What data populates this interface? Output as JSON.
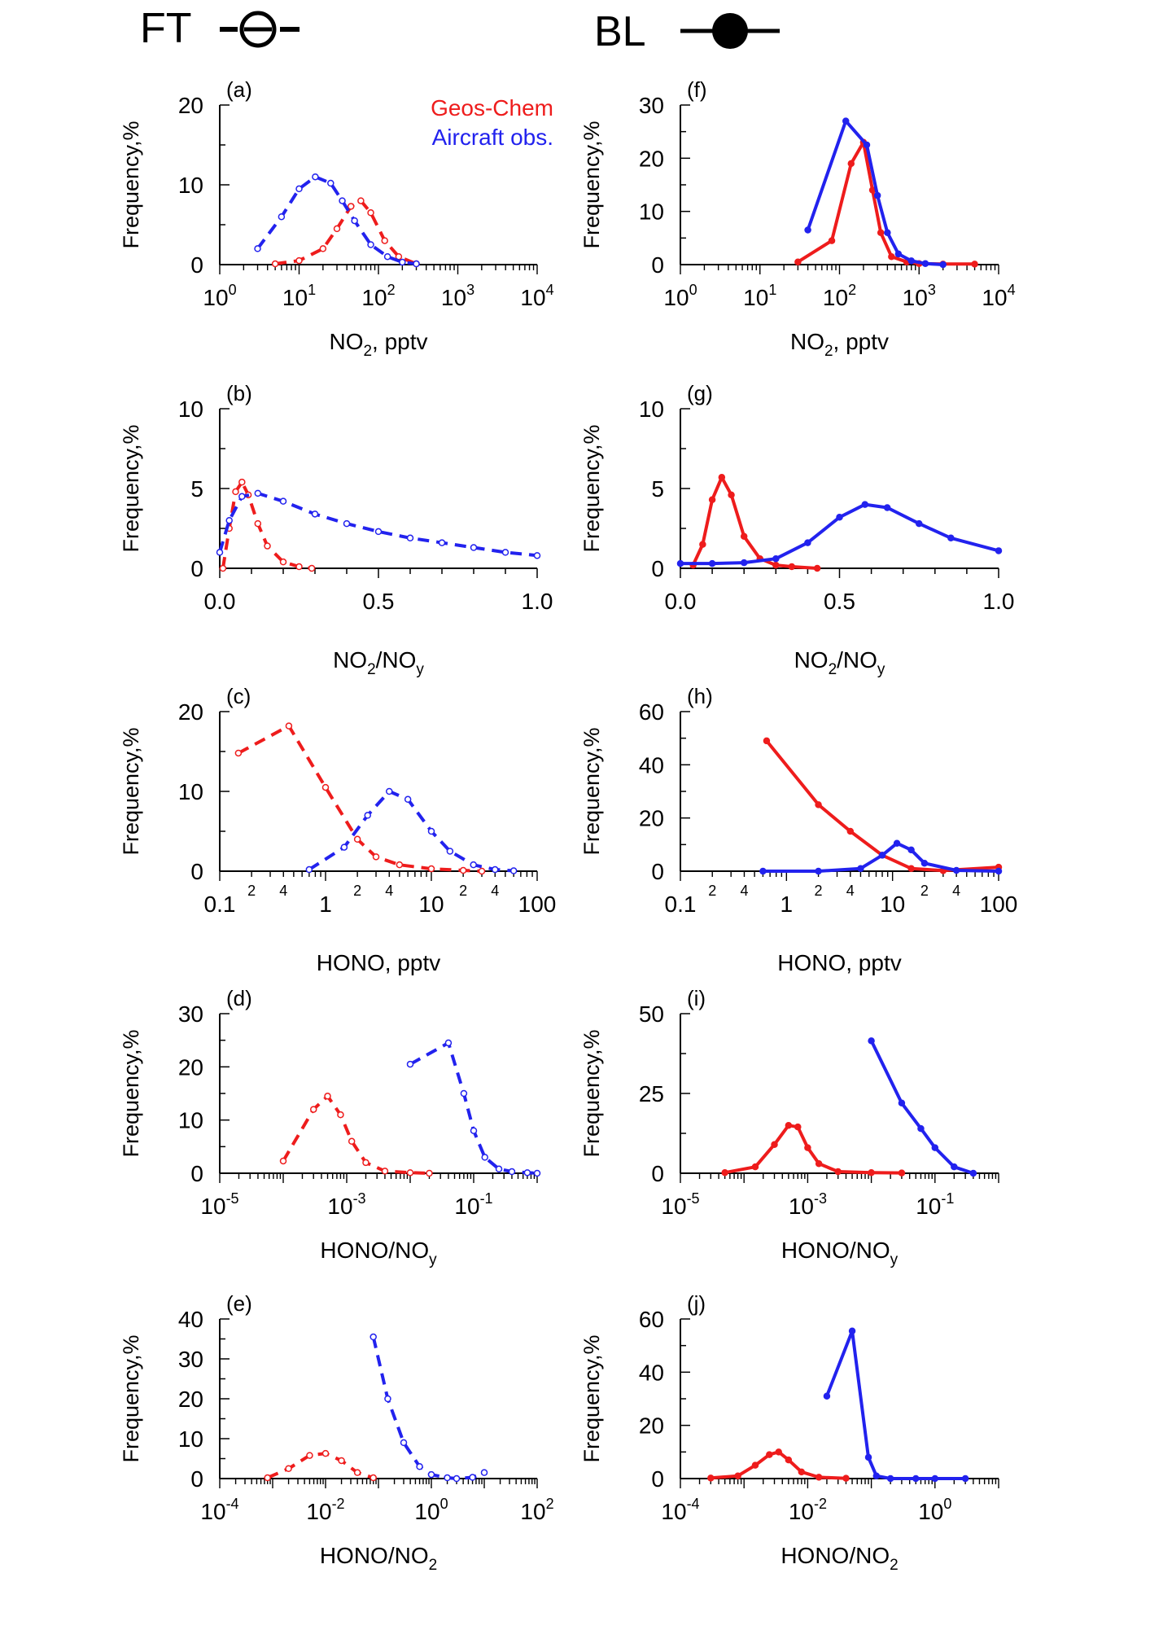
{
  "header": {
    "ft_label": "FT",
    "bl_label": "BL"
  },
  "legend": {
    "model": "Geos-Chem",
    "obs": "Aircraft obs.",
    "model_color": "#ee1c1c",
    "obs_color": "#2222ee",
    "placement": "top-right of panel (a)"
  },
  "ylabel": "Frequency,%",
  "chart_data": [
    {
      "panel": "(a)",
      "type": "line",
      "xlabel": "NO",
      "xlabel_sub": "2",
      "xlabel_suffix": ", pptv",
      "xscale": "log",
      "xlim": [
        1,
        10000
      ],
      "ylim": [
        0,
        20
      ],
      "yticks": [
        0,
        10,
        20
      ],
      "xticks": [
        1,
        10,
        100,
        1000,
        10000
      ],
      "xtick_labels": [
        {
          "b": "10",
          "e": "0"
        },
        {
          "b": "10",
          "e": "1"
        },
        {
          "b": "10",
          "e": "2"
        },
        {
          "b": "10",
          "e": "3"
        },
        {
          "b": "10",
          "e": "4"
        }
      ],
      "line_style": "dashed",
      "series": [
        {
          "name": "Geos-Chem",
          "color": "#ee1c1c",
          "x": [
            5,
            10,
            20,
            30,
            45,
            60,
            80,
            120,
            180,
            300
          ],
          "y": [
            0.1,
            0.5,
            2,
            4.5,
            7.3,
            8,
            6.5,
            3,
            1,
            0.1
          ]
        },
        {
          "name": "Aircraft obs.",
          "color": "#2222ee",
          "x": [
            3,
            6,
            10,
            16,
            25,
            35,
            50,
            80,
            130,
            200,
            300
          ],
          "y": [
            2,
            6,
            9.5,
            11,
            10.2,
            8,
            5.5,
            2.5,
            1,
            0.3,
            0.1
          ]
        }
      ]
    },
    {
      "panel": "(b)",
      "type": "line",
      "xlabel": "NO",
      "xlabel_sub": "2",
      "xlabel_suffix": "/NO",
      "xlabel_sub2": "y",
      "xscale": "linear",
      "xlim": [
        0,
        1
      ],
      "ylim": [
        0,
        10
      ],
      "yticks": [
        0,
        5,
        10
      ],
      "xticks": [
        0,
        0.5,
        1
      ],
      "xtick_labels": [
        "0.0",
        "0.5",
        "1.0"
      ],
      "line_style": "dashed",
      "series": [
        {
          "name": "Geos-Chem",
          "color": "#ee1c1c",
          "x": [
            0.01,
            0.03,
            0.05,
            0.07,
            0.09,
            0.12,
            0.15,
            0.2,
            0.25,
            0.29
          ],
          "y": [
            0,
            2.5,
            4.8,
            5.4,
            4.6,
            2.8,
            1.4,
            0.4,
            0.1,
            0
          ]
        },
        {
          "name": "Aircraft obs.",
          "color": "#2222ee",
          "x": [
            0,
            0.03,
            0.07,
            0.12,
            0.2,
            0.3,
            0.4,
            0.5,
            0.6,
            0.7,
            0.8,
            0.9,
            1.0
          ],
          "y": [
            1,
            3,
            4.5,
            4.7,
            4.2,
            3.4,
            2.8,
            2.3,
            1.9,
            1.6,
            1.3,
            1,
            0.8
          ]
        }
      ]
    },
    {
      "panel": "(c)",
      "type": "line",
      "xlabel": "HONO, pptv",
      "xscale": "log",
      "xlim": [
        0.1,
        100
      ],
      "ylim": [
        0,
        20
      ],
      "yticks": [
        0,
        10,
        20
      ],
      "xticks": [
        0.1,
        1,
        10,
        100
      ],
      "xtick_labels": [
        "0.1",
        "1",
        "10",
        "100"
      ],
      "minor_labels": [
        {
          "v": 0.2,
          "t": "2"
        },
        {
          "v": 0.4,
          "t": "4"
        },
        {
          "v": 2,
          "t": "2"
        },
        {
          "v": 4,
          "t": "4"
        },
        {
          "v": 20,
          "t": "2"
        },
        {
          "v": 40,
          "t": "4"
        }
      ],
      "line_style": "dashed",
      "series": [
        {
          "name": "Geos-Chem",
          "color": "#ee1c1c",
          "x": [
            0.15,
            0.45,
            1,
            2,
            3,
            5,
            10,
            20,
            30
          ],
          "y": [
            14.8,
            18.2,
            10.5,
            4,
            1.8,
            0.8,
            0.3,
            0.1,
            0
          ]
        },
        {
          "name": "Aircraft obs.",
          "color": "#2222ee",
          "x": [
            0.7,
            1.5,
            2.5,
            4,
            6,
            10,
            15,
            25,
            40,
            60
          ],
          "y": [
            0.2,
            3,
            7,
            10,
            9,
            5,
            2.5,
            0.8,
            0.2,
            0.05
          ]
        }
      ]
    },
    {
      "panel": "(d)",
      "type": "line",
      "xlabel": "HONO/NO",
      "xlabel_sub": "y",
      "xscale": "log",
      "xlim": [
        1e-05,
        1
      ],
      "ylim": [
        0,
        30
      ],
      "yticks": [
        0,
        10,
        20,
        30
      ],
      "xticks": [
        1e-05,
        0.001,
        0.1
      ],
      "xtick_labels": [
        {
          "b": "10",
          "e": "-5"
        },
        {
          "b": "10",
          "e": "-3"
        },
        {
          "b": "10",
          "e": "-1"
        }
      ],
      "line_style": "dashed",
      "series": [
        {
          "name": "Geos-Chem",
          "color": "#ee1c1c",
          "x": [
            0.0001,
            0.0003,
            0.0005,
            0.0008,
            0.0012,
            0.002,
            0.004,
            0.01,
            0.02
          ],
          "y": [
            2.3,
            12,
            14.5,
            11,
            6,
            2,
            0.4,
            0.1,
            0
          ]
        },
        {
          "name": "Aircraft obs.",
          "color": "#2222ee",
          "x": [
            0.01,
            0.04,
            0.07,
            0.1,
            0.15,
            0.25,
            0.4,
            0.7,
            1
          ],
          "y": [
            20.5,
            24.5,
            15,
            8,
            3,
            0.8,
            0.3,
            0.1,
            0
          ]
        }
      ]
    },
    {
      "panel": "(e)",
      "type": "line",
      "xlabel": "HONO/NO",
      "xlabel_sub": "2",
      "xscale": "log",
      "xlim": [
        0.0001,
        100
      ],
      "ylim": [
        0,
        40
      ],
      "yticks": [
        0,
        10,
        20,
        30,
        40
      ],
      "xticks": [
        0.0001,
        0.01,
        1,
        100
      ],
      "xtick_labels": [
        {
          "b": "10",
          "e": "-4"
        },
        {
          "b": "10",
          "e": "-2"
        },
        {
          "b": "10",
          "e": "0"
        },
        {
          "b": "10",
          "e": "2"
        }
      ],
      "line_style": "dashed",
      "series": [
        {
          "name": "Geos-Chem",
          "color": "#ee1c1c",
          "x": [
            0.0008,
            0.002,
            0.005,
            0.01,
            0.02,
            0.04,
            0.08
          ],
          "y": [
            0.2,
            2.5,
            5.8,
            6.3,
            4.5,
            1.5,
            0.2
          ]
        },
        {
          "name": "Aircraft obs.",
          "color": "#2222ee",
          "x": [
            0.08,
            0.15,
            0.3,
            0.6,
            1,
            2,
            3,
            6,
            10
          ],
          "y": [
            35.5,
            20,
            9,
            3,
            1,
            0.2,
            0,
            0.3,
            1.5
          ]
        }
      ]
    },
    {
      "panel": "(f)",
      "type": "line",
      "xlabel": "NO",
      "xlabel_sub": "2",
      "xlabel_suffix": ", pptv",
      "xscale": "log",
      "xlim": [
        1,
        10000
      ],
      "ylim": [
        0,
        30
      ],
      "yticks": [
        0,
        10,
        20,
        30
      ],
      "xticks": [
        1,
        10,
        100,
        1000,
        10000
      ],
      "xtick_labels": [
        {
          "b": "10",
          "e": "0"
        },
        {
          "b": "10",
          "e": "1"
        },
        {
          "b": "10",
          "e": "2"
        },
        {
          "b": "10",
          "e": "3"
        },
        {
          "b": "10",
          "e": "4"
        }
      ],
      "line_style": "solid",
      "series": [
        {
          "name": "Geos-Chem",
          "color": "#ee1c1c",
          "x": [
            30,
            80,
            140,
            200,
            260,
            330,
            450,
            700,
            1000,
            2000,
            5000
          ],
          "y": [
            0.5,
            4.5,
            19,
            23,
            14,
            6,
            1.5,
            0.5,
            0.2,
            0.1,
            0.1
          ]
        },
        {
          "name": "Aircraft obs.",
          "color": "#2222ee",
          "x": [
            40,
            120,
            220,
            300,
            400,
            550,
            800,
            1200,
            2000
          ],
          "y": [
            6.5,
            27,
            22.5,
            13,
            6,
            2,
            0.7,
            0.2,
            0
          ]
        }
      ]
    },
    {
      "panel": "(g)",
      "type": "line",
      "xlabel": "NO",
      "xlabel_sub": "2",
      "xlabel_suffix": "/NO",
      "xlabel_sub2": "y",
      "xscale": "linear",
      "xlim": [
        0,
        1
      ],
      "ylim": [
        0,
        10
      ],
      "yticks": [
        0,
        5,
        10
      ],
      "xticks": [
        0,
        0.5,
        1
      ],
      "xtick_labels": [
        "0.0",
        "0.5",
        "1.0"
      ],
      "line_style": "solid",
      "series": [
        {
          "name": "Geos-Chem",
          "color": "#ee1c1c",
          "x": [
            0.04,
            0.07,
            0.1,
            0.13,
            0.16,
            0.2,
            0.25,
            0.3,
            0.35,
            0.43
          ],
          "y": [
            0.2,
            1.5,
            4.3,
            5.7,
            4.6,
            2,
            0.6,
            0.2,
            0.1,
            0
          ]
        },
        {
          "name": "Aircraft obs.",
          "color": "#2222ee",
          "x": [
            0,
            0.1,
            0.2,
            0.3,
            0.4,
            0.5,
            0.58,
            0.65,
            0.75,
            0.85,
            1.0
          ],
          "y": [
            0.3,
            0.3,
            0.35,
            0.6,
            1.6,
            3.2,
            4,
            3.8,
            2.8,
            1.9,
            1.1
          ]
        }
      ]
    },
    {
      "panel": "(h)",
      "type": "line",
      "xlabel": "HONO, pptv",
      "xscale": "log",
      "xlim": [
        0.1,
        100
      ],
      "ylim": [
        0,
        60
      ],
      "yticks": [
        0,
        20,
        40,
        60
      ],
      "xticks": [
        0.1,
        1,
        10,
        100
      ],
      "xtick_labels": [
        "0.1",
        "1",
        "10",
        "100"
      ],
      "minor_labels": [
        {
          "v": 0.2,
          "t": "2"
        },
        {
          "v": 0.4,
          "t": "4"
        },
        {
          "v": 2,
          "t": "2"
        },
        {
          "v": 4,
          "t": "4"
        },
        {
          "v": 20,
          "t": "2"
        },
        {
          "v": 40,
          "t": "4"
        }
      ],
      "line_style": "solid",
      "series": [
        {
          "name": "Geos-Chem",
          "color": "#ee1c1c",
          "x": [
            0.65,
            2,
            4,
            8,
            15,
            30,
            100
          ],
          "y": [
            49,
            25,
            15,
            6,
            1,
            0.2,
            1.5
          ]
        },
        {
          "name": "Aircraft obs.",
          "color": "#2222ee",
          "x": [
            0.6,
            2,
            5,
            8,
            11,
            15,
            20,
            40,
            100
          ],
          "y": [
            0,
            0,
            1,
            6,
            10.5,
            8,
            3,
            0.3,
            0
          ]
        }
      ]
    },
    {
      "panel": "(i)",
      "type": "line",
      "xlabel": "HONO/NO",
      "xlabel_sub": "y",
      "xscale": "log",
      "xlim": [
        1e-05,
        1
      ],
      "ylim": [
        0,
        50
      ],
      "yticks": [
        0,
        25,
        50
      ],
      "xticks": [
        1e-05,
        0.001,
        0.1
      ],
      "xtick_labels": [
        {
          "b": "10",
          "e": "-5"
        },
        {
          "b": "10",
          "e": "-3"
        },
        {
          "b": "10",
          "e": "-1"
        }
      ],
      "line_style": "solid",
      "series": [
        {
          "name": "Geos-Chem",
          "color": "#ee1c1c",
          "x": [
            5e-05,
            0.00015,
            0.0003,
            0.0005,
            0.0007,
            0.001,
            0.0015,
            0.003,
            0.01,
            0.03
          ],
          "y": [
            0.2,
            2,
            9,
            15,
            14.5,
            8,
            3,
            0.5,
            0.2,
            0.1
          ]
        },
        {
          "name": "Aircraft obs.",
          "color": "#2222ee",
          "x": [
            0.01,
            0.03,
            0.06,
            0.1,
            0.2,
            0.4
          ],
          "y": [
            41.5,
            22,
            14,
            8,
            2,
            0
          ]
        }
      ]
    },
    {
      "panel": "(j)",
      "type": "line",
      "xlabel": "HONO/NO",
      "xlabel_sub": "2",
      "xscale": "log",
      "xlim": [
        0.0001,
        10
      ],
      "ylim": [
        0,
        60
      ],
      "yticks": [
        0,
        20,
        40,
        60
      ],
      "xticks": [
        0.0001,
        0.01,
        1
      ],
      "xtick_labels": [
        {
          "b": "10",
          "e": "-4"
        },
        {
          "b": "10",
          "e": "-2"
        },
        {
          "b": "10",
          "e": "0"
        }
      ],
      "line_style": "solid",
      "series": [
        {
          "name": "Geos-Chem",
          "color": "#ee1c1c",
          "x": [
            0.0003,
            0.0008,
            0.0015,
            0.0025,
            0.0035,
            0.005,
            0.008,
            0.015,
            0.04
          ],
          "y": [
            0.2,
            1,
            5,
            9,
            10,
            7,
            2.5,
            0.5,
            0.1
          ]
        },
        {
          "name": "Aircraft obs.",
          "color": "#2222ee",
          "x": [
            0.02,
            0.05,
            0.09,
            0.12,
            0.2,
            0.5,
            1,
            3
          ],
          "y": [
            31,
            55.5,
            8,
            1,
            0,
            0,
            0,
            0
          ]
        }
      ]
    }
  ]
}
